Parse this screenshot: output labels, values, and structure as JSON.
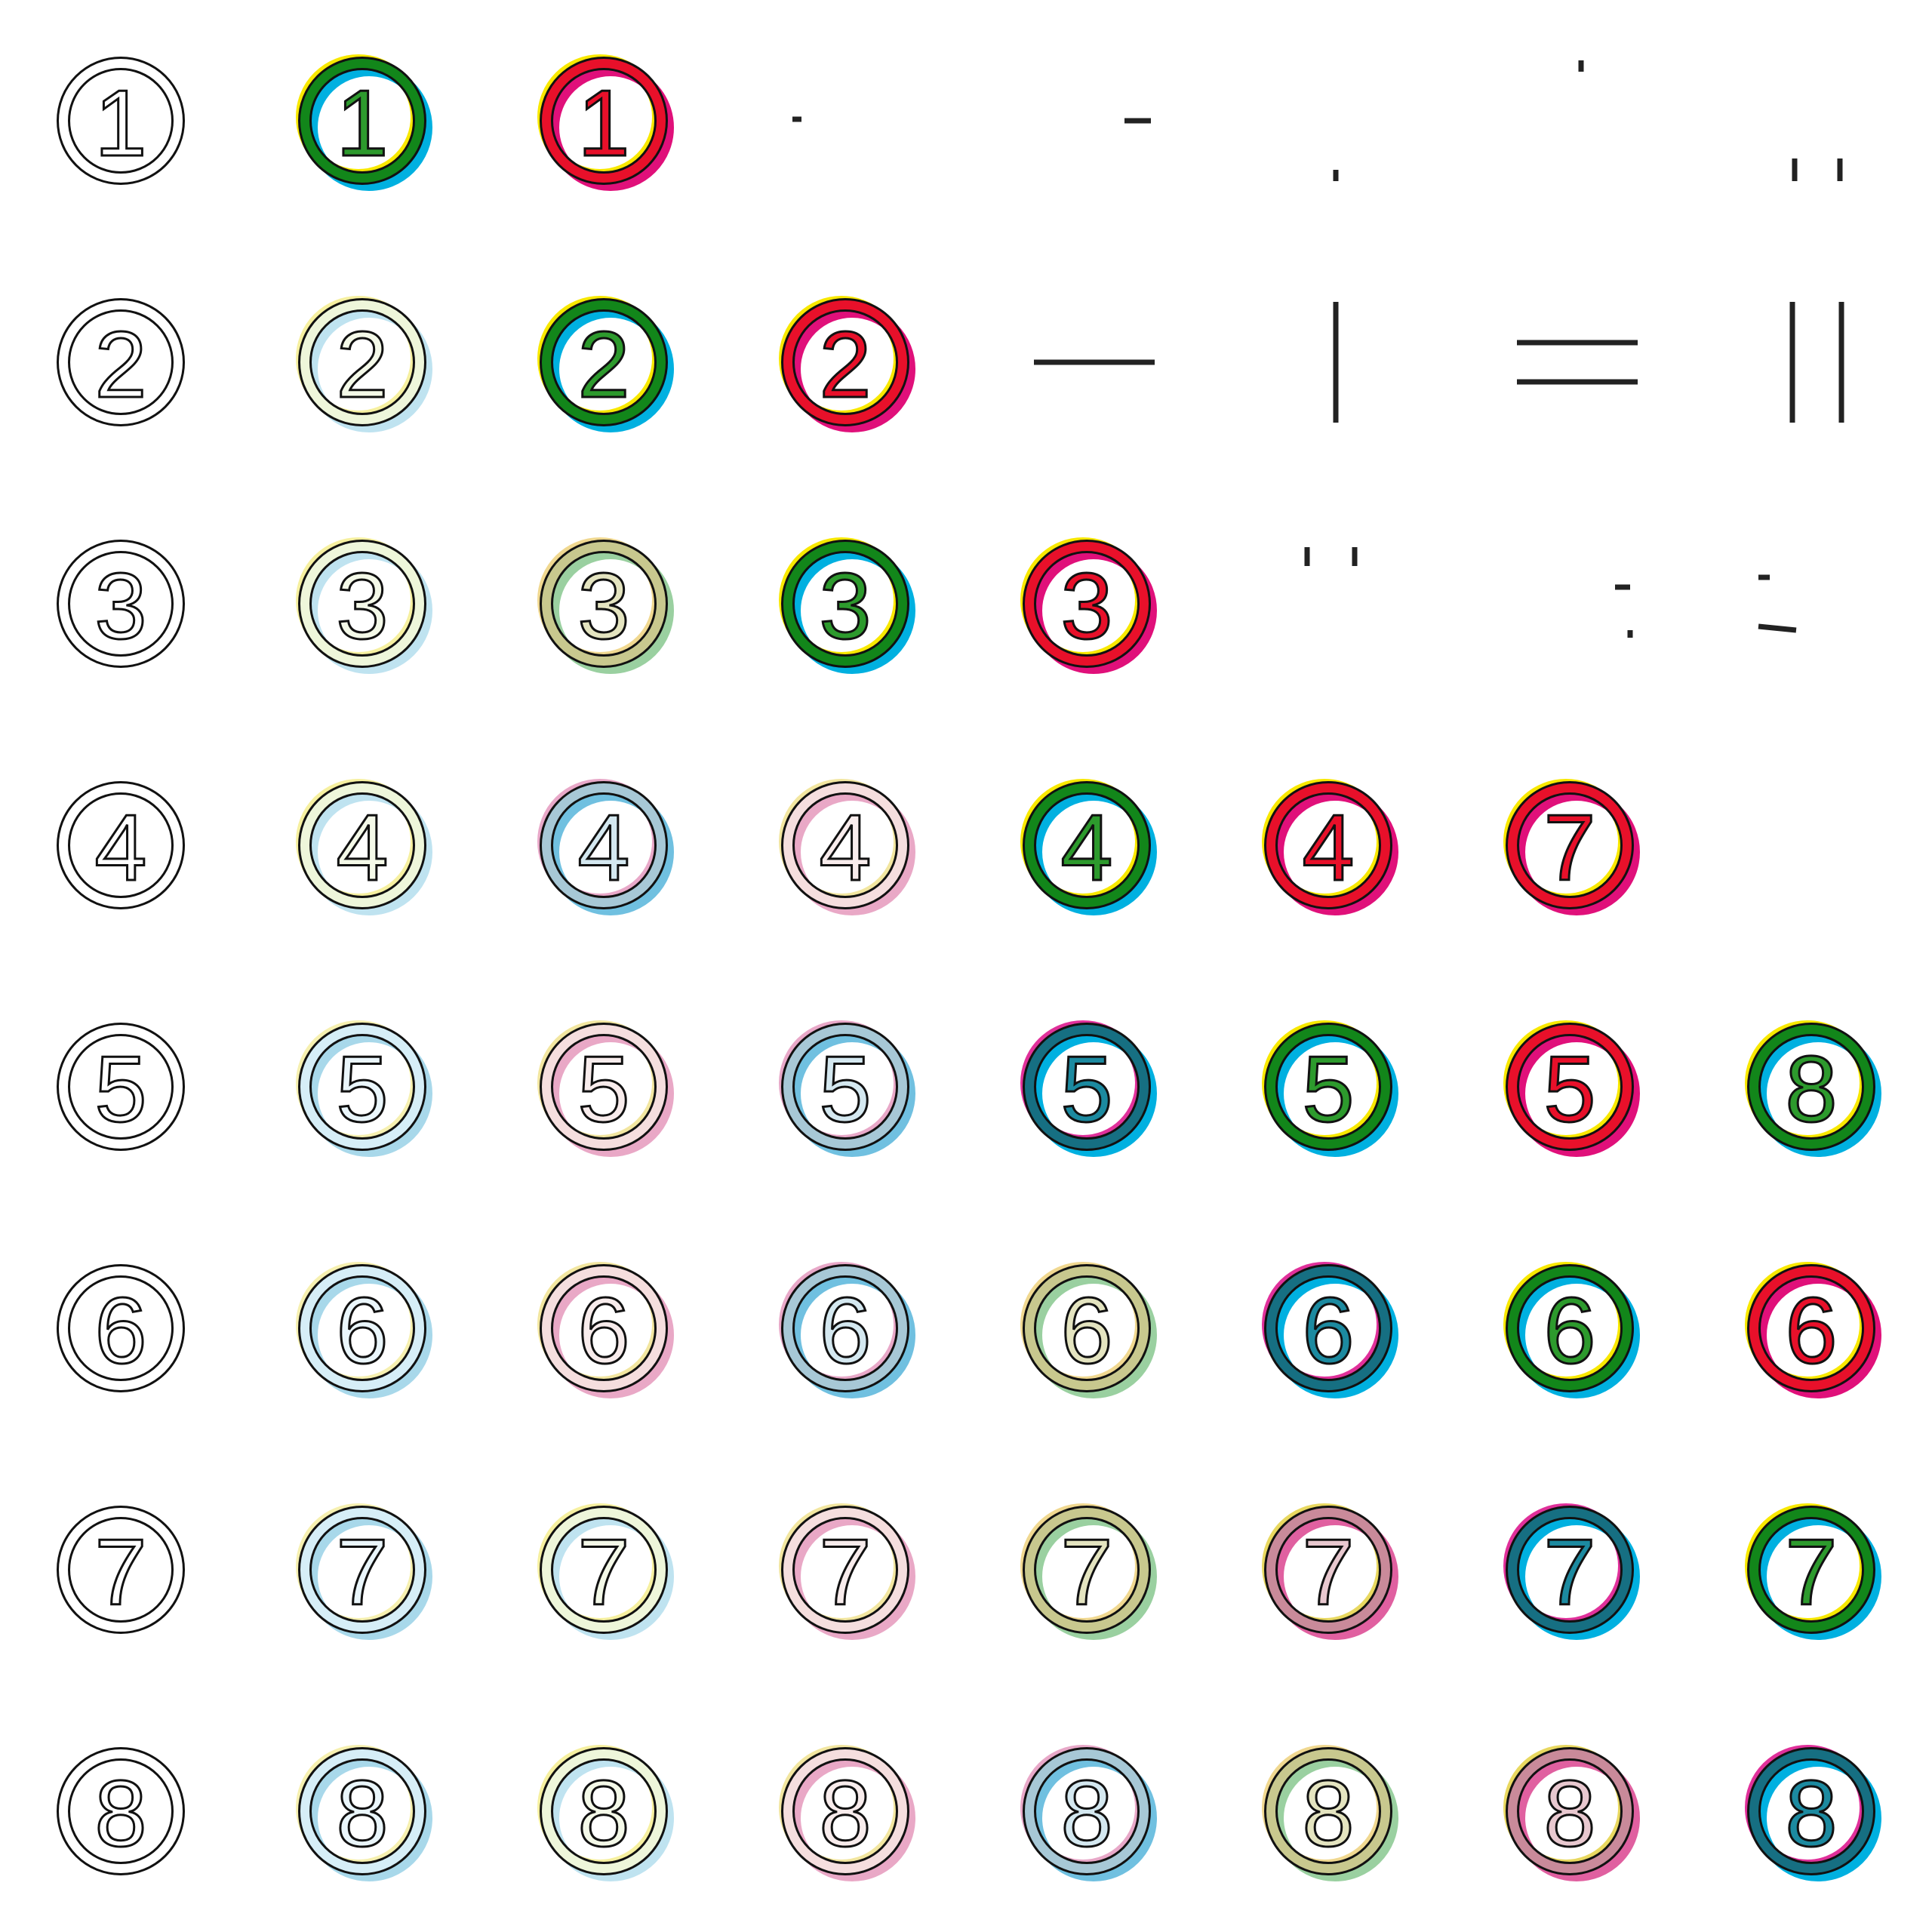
{
  "grid": {
    "rows": [
      [
        "1",
        "1",
        "1",
        null,
        null,
        null,
        null,
        null
      ],
      [
        "2",
        "2",
        "2",
        "2",
        null,
        null,
        null,
        null
      ],
      [
        "3",
        "3",
        "3",
        "3",
        "3",
        null,
        null,
        null
      ],
      [
        "4",
        "4",
        "4",
        "4",
        "4",
        "4",
        "7",
        null
      ],
      [
        "5",
        "5",
        "5",
        "5",
        "5",
        "5",
        "5",
        "8"
      ],
      [
        "6",
        "6",
        "6",
        "6",
        "6",
        "6",
        "6",
        "6"
      ],
      [
        "7",
        "7",
        "7",
        "7",
        "7",
        "7",
        "7",
        "7"
      ],
      [
        "8",
        "8",
        "8",
        "8",
        "8",
        "8",
        "8",
        "8"
      ]
    ]
  }
}
